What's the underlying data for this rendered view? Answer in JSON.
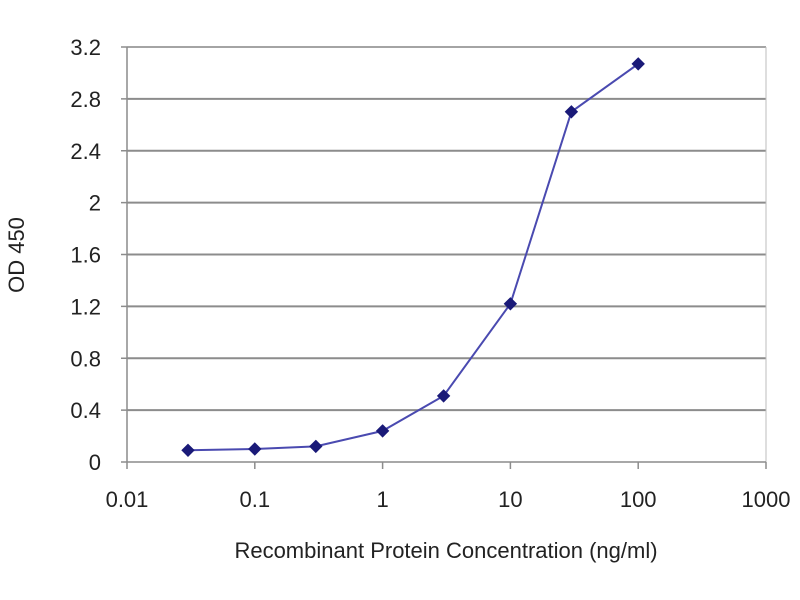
{
  "chart_data": {
    "type": "line",
    "title": "",
    "xlabel": "Recombinant Protein Concentration (ng/ml)",
    "ylabel": "OD 450",
    "x_scale": "log",
    "xlim": [
      0.01,
      1000
    ],
    "ylim": [
      0,
      3.2
    ],
    "x_ticks": [
      "0.01",
      "0.1",
      "1",
      "10",
      "100",
      "1000"
    ],
    "y_ticks": [
      "0",
      "0.4",
      "0.8",
      "1.2",
      "1.6",
      "2",
      "2.4",
      "2.8",
      "3.2"
    ],
    "grid": "horizontal",
    "legend": "none",
    "colors": {
      "line": "#4a4ab0",
      "marker": "#1a1a78",
      "grid": "#8c8c8c",
      "axis": "#8c8c8c"
    },
    "series": [
      {
        "x": [
          0.03,
          0.1,
          0.3,
          1,
          3,
          10,
          30,
          100
        ],
        "y": [
          0.09,
          0.1,
          0.12,
          0.24,
          0.51,
          1.22,
          2.7,
          3.07
        ]
      }
    ]
  }
}
